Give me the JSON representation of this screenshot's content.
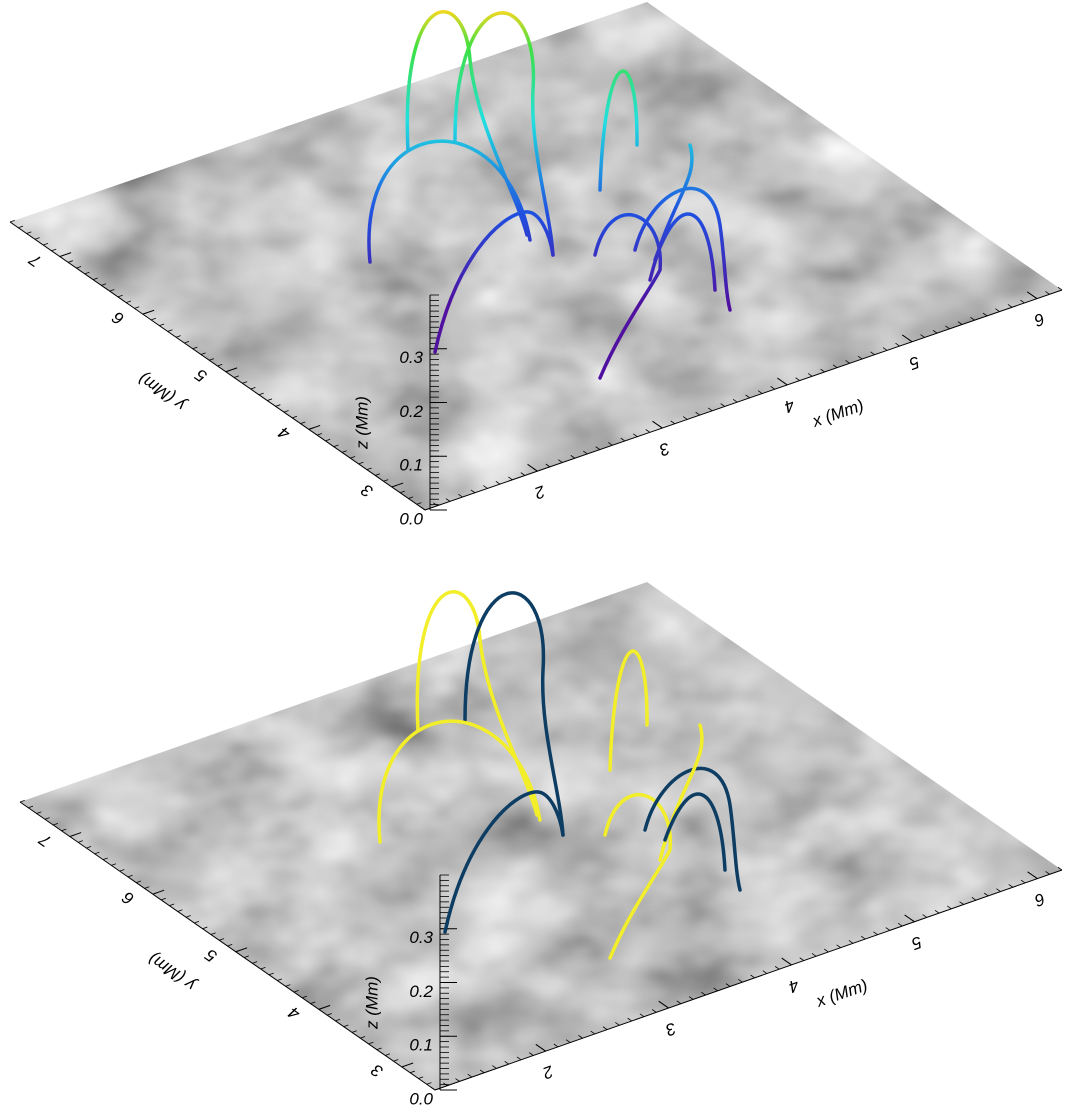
{
  "chart_data": [
    {
      "type": "surface3d",
      "xlabel": "x (Mm)",
      "ylabel": "y (Mm)",
      "zlabel": "z (Mm)",
      "xlim": [
        1.1,
        6.2
      ],
      "ylim": [
        2.6,
        7.6
      ],
      "zlim": [
        0,
        0.4
      ],
      "xticks": [
        2,
        3,
        4,
        5,
        6
      ],
      "yticks": [
        3,
        4,
        5,
        6,
        7
      ],
      "zticks": [
        {
          "value": 0,
          "label": "0.0"
        },
        0.1,
        0.2,
        0.3
      ]
    },
    {
      "type": "surface3d",
      "xlabel": "x (Mm)",
      "ylabel": "y (Mm)",
      "zlabel": "z (Mm)",
      "xlim": [
        1.1,
        6.2
      ],
      "ylim": [
        2.6,
        7.6
      ],
      "zlim": [
        0,
        0.4
      ],
      "xticks": [
        2,
        3,
        4,
        5,
        6
      ],
      "yticks": [
        3,
        4,
        5,
        6,
        7
      ],
      "zticks": [
        {
          "value": 0,
          "label": "0.0"
        },
        0.1,
        0.2,
        0.3
      ]
    }
  ]
}
